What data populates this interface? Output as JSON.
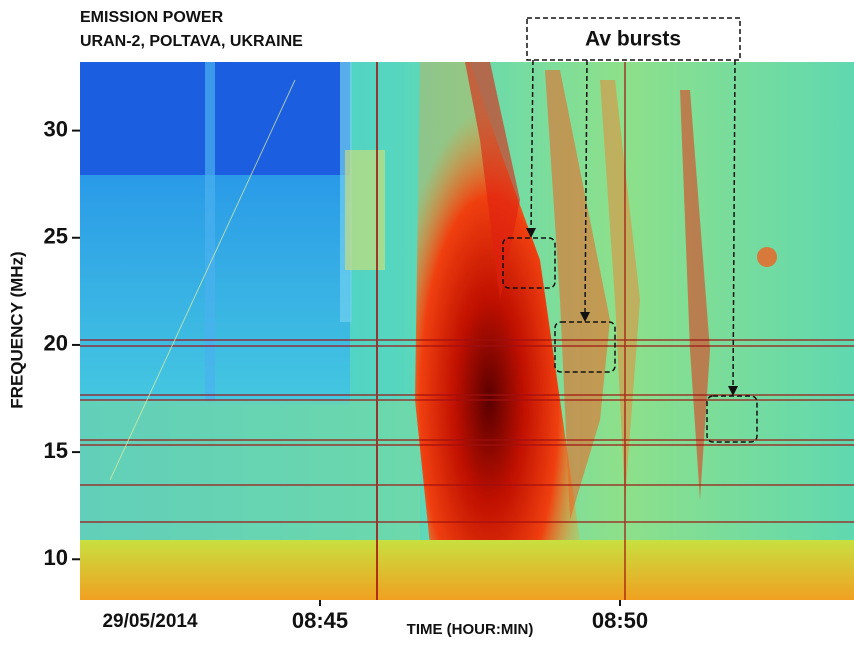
{
  "chart_data": {
    "type": "spectrogram",
    "title": "EMISSION POWER",
    "subtitle": "URAN-2, POLTAVA, UKRAINE",
    "annotation": "Av bursts",
    "date_label": "29/05/2014",
    "xlabel": "TIME (HOUR:MIN)",
    "ylabel": "FREQUENCY (MHz)",
    "xlim": [
      521,
      533.9
    ],
    "xticks": [
      {
        "value": 525,
        "label": "08:45"
      },
      {
        "value": 530,
        "label": "08:50"
      }
    ],
    "ylim": [
      8.1,
      33.2
    ],
    "yticks": [
      10,
      15,
      20,
      25,
      30
    ]
  }
}
